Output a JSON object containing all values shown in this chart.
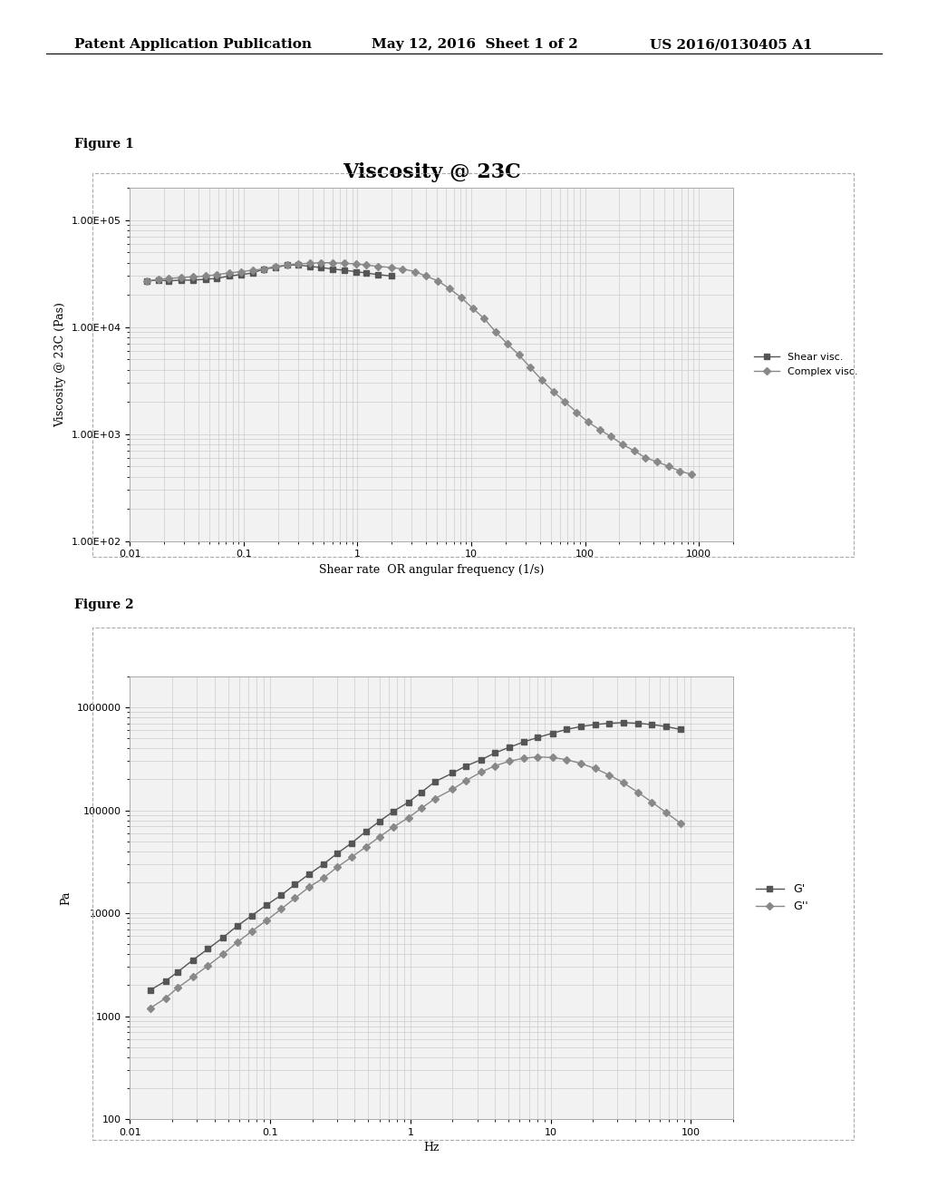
{
  "header_left": "Patent Application Publication",
  "header_mid": "May 12, 2016  Sheet 1 of 2",
  "header_right": "US 2016/0130405 A1",
  "fig1_title": "Viscosity @ 23C",
  "fig1_xlabel": "Shear rate  OR angular frequency (1/s)",
  "fig1_ylabel": "Viscosity @ 23C (Pas)",
  "fig1_label": "Figure 1",
  "fig1_ylim": [
    100,
    200000
  ],
  "fig1_xlim": [
    0.01,
    2000
  ],
  "fig1_legend1": "Shear visc.",
  "fig1_legend2": "Complex visc.",
  "shear_x": [
    0.014,
    0.018,
    0.022,
    0.028,
    0.036,
    0.046,
    0.058,
    0.074,
    0.094,
    0.12,
    0.15,
    0.19,
    0.24,
    0.3,
    0.38,
    0.48,
    0.6,
    0.76,
    0.97,
    1.2,
    1.5,
    2.0
  ],
  "shear_y": [
    27000,
    27500,
    27000,
    27500,
    27500,
    28000,
    28500,
    30000,
    31000,
    32000,
    35000,
    36000,
    38000,
    38000,
    37000,
    36000,
    35000,
    34000,
    33000,
    32000,
    31000,
    30000
  ],
  "complex_x": [
    0.014,
    0.018,
    0.022,
    0.028,
    0.036,
    0.046,
    0.058,
    0.074,
    0.094,
    0.12,
    0.15,
    0.19,
    0.24,
    0.3,
    0.38,
    0.48,
    0.6,
    0.76,
    0.97,
    1.2,
    1.5,
    2.0,
    2.5,
    3.2,
    4.0,
    5.1,
    6.4,
    8.1,
    10.3,
    13.0,
    16.4,
    20.7,
    26.2,
    33.0,
    41.7,
    52.7,
    66.6,
    84.1,
    106,
    134,
    169,
    213,
    269,
    340,
    429,
    542,
    684,
    863
  ],
  "complex_y": [
    27000,
    28000,
    28500,
    29000,
    29500,
    30000,
    31000,
    32000,
    33000,
    34000,
    35000,
    37000,
    38000,
    39000,
    39500,
    40000,
    40000,
    39500,
    39000,
    38000,
    37000,
    36000,
    35000,
    33000,
    30000,
    27000,
    23000,
    19000,
    15000,
    12000,
    9000,
    7000,
    5500,
    4200,
    3200,
    2500,
    2000,
    1600,
    1300,
    1100,
    950,
    800,
    700,
    600,
    550,
    500,
    450,
    420
  ],
  "fig2_label": "Figure 2",
  "fig2_xlabel": "Hz",
  "fig2_ylabel": "Pa",
  "fig2_legend1": "G'",
  "fig2_legend2": "G''",
  "fig2_xlim": [
    0.01,
    200
  ],
  "fig2_ylim": [
    100,
    2000000
  ],
  "Gprime_x": [
    0.014,
    0.018,
    0.022,
    0.028,
    0.036,
    0.046,
    0.058,
    0.074,
    0.094,
    0.12,
    0.15,
    0.19,
    0.24,
    0.3,
    0.38,
    0.48,
    0.6,
    0.76,
    0.97,
    1.2,
    1.5,
    2.0,
    2.5,
    3.2,
    4.0,
    5.1,
    6.4,
    8.1,
    10.3,
    13.0,
    16.4,
    20.7,
    26.2,
    33.0,
    41.7,
    52.7,
    66.6,
    84.1
  ],
  "Gprime_y": [
    1800,
    2200,
    2700,
    3500,
    4500,
    5800,
    7500,
    9500,
    12000,
    15000,
    19000,
    24000,
    30000,
    38000,
    48000,
    62000,
    78000,
    98000,
    120000,
    150000,
    190000,
    230000,
    270000,
    310000,
    360000,
    410000,
    460000,
    510000,
    560000,
    610000,
    650000,
    680000,
    700000,
    710000,
    700000,
    680000,
    650000,
    610000
  ],
  "Gdprime_x": [
    0.014,
    0.018,
    0.022,
    0.028,
    0.036,
    0.046,
    0.058,
    0.074,
    0.094,
    0.12,
    0.15,
    0.19,
    0.24,
    0.3,
    0.38,
    0.48,
    0.6,
    0.76,
    0.97,
    1.2,
    1.5,
    2.0,
    2.5,
    3.2,
    4.0,
    5.1,
    6.4,
    8.1,
    10.3,
    13.0,
    16.4,
    20.7,
    26.2,
    33.0,
    41.7,
    52.7,
    66.6,
    84.1
  ],
  "Gdprime_y": [
    1200,
    1500,
    1900,
    2400,
    3100,
    4000,
    5200,
    6700,
    8500,
    11000,
    14000,
    18000,
    22000,
    28000,
    35000,
    44000,
    55000,
    69000,
    85000,
    105000,
    130000,
    160000,
    195000,
    235000,
    270000,
    300000,
    320000,
    330000,
    325000,
    310000,
    285000,
    255000,
    220000,
    185000,
    150000,
    120000,
    95000,
    75000
  ],
  "bg_color": "#ffffff",
  "plot_bg": "#f2f2f2",
  "line_color1": "#555555",
  "line_color2": "#888888",
  "grid_color": "#cccccc"
}
